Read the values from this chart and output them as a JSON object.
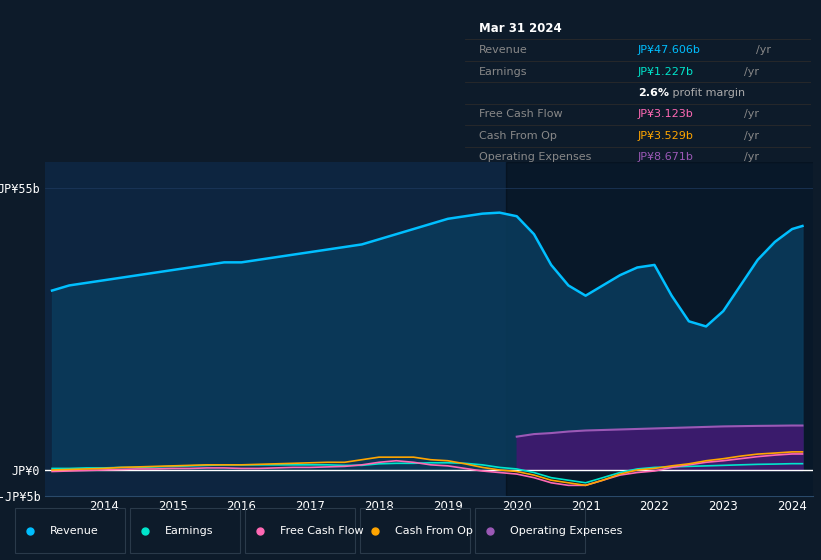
{
  "bg_color": "#0d1b2a",
  "plot_bg": "#0d2540",
  "grid_color": "#1e3a5f",
  "years": [
    2013.25,
    2013.5,
    2013.75,
    2014.0,
    2014.25,
    2014.5,
    2014.75,
    2015.0,
    2015.25,
    2015.5,
    2015.75,
    2016.0,
    2016.25,
    2016.5,
    2016.75,
    2017.0,
    2017.25,
    2017.5,
    2017.75,
    2018.0,
    2018.25,
    2018.5,
    2018.75,
    2019.0,
    2019.25,
    2019.5,
    2019.75,
    2020.0,
    2020.25,
    2020.5,
    2020.75,
    2021.0,
    2021.25,
    2021.5,
    2021.75,
    2022.0,
    2022.25,
    2022.5,
    2022.75,
    2023.0,
    2023.25,
    2023.5,
    2023.75,
    2024.0,
    2024.15
  ],
  "revenue": [
    35,
    36,
    36.5,
    37,
    37.5,
    38,
    38.5,
    39,
    39.5,
    40,
    40.5,
    40.5,
    41,
    41.5,
    42,
    42.5,
    43,
    43.5,
    44,
    45,
    46,
    47,
    48,
    49,
    49.5,
    50,
    50.2,
    49.5,
    46,
    40,
    36,
    34,
    36,
    38,
    39.5,
    40,
    34,
    29,
    28,
    31,
    36,
    41,
    44.5,
    47,
    47.6
  ],
  "earnings": [
    0.3,
    0.3,
    0.4,
    0.4,
    0.5,
    0.5,
    0.6,
    0.7,
    0.8,
    0.9,
    1.0,
    1.0,
    1.0,
    1.0,
    1.0,
    1.0,
    1.0,
    0.9,
    0.9,
    1.2,
    1.3,
    1.3,
    1.4,
    1.4,
    1.3,
    1.0,
    0.5,
    0.2,
    -0.5,
    -1.5,
    -2.0,
    -2.5,
    -1.5,
    -0.5,
    0.2,
    0.5,
    0.6,
    0.7,
    0.8,
    0.9,
    1.0,
    1.1,
    1.15,
    1.227,
    1.227
  ],
  "free_cash_flow": [
    -0.3,
    -0.2,
    -0.1,
    0.0,
    0.1,
    0.2,
    0.2,
    0.3,
    0.3,
    0.4,
    0.4,
    0.3,
    0.3,
    0.4,
    0.5,
    0.5,
    0.6,
    0.7,
    1.0,
    1.5,
    1.8,
    1.5,
    1.0,
    0.8,
    0.3,
    -0.2,
    -0.5,
    -0.8,
    -1.5,
    -2.5,
    -3.0,
    -3.0,
    -2.0,
    -1.0,
    -0.5,
    -0.2,
    0.5,
    1.0,
    1.5,
    1.8,
    2.2,
    2.6,
    2.9,
    3.123,
    3.123
  ],
  "cash_from_op": [
    0.0,
    0.1,
    0.2,
    0.3,
    0.5,
    0.6,
    0.7,
    0.8,
    0.9,
    1.0,
    1.0,
    1.0,
    1.1,
    1.2,
    1.3,
    1.4,
    1.5,
    1.5,
    2.0,
    2.5,
    2.5,
    2.5,
    2.0,
    1.8,
    1.2,
    0.5,
    0.0,
    -0.3,
    -1.0,
    -2.0,
    -2.5,
    -3.0,
    -2.0,
    -0.8,
    0.0,
    0.3,
    0.8,
    1.2,
    1.8,
    2.2,
    2.7,
    3.1,
    3.3,
    3.529,
    3.529
  ],
  "operating_expenses": [
    0,
    0,
    0,
    0,
    0,
    0,
    0,
    0,
    0,
    0,
    0,
    0,
    0,
    0,
    0,
    0,
    0,
    0,
    0,
    0,
    0,
    0,
    0,
    0,
    0,
    0,
    0,
    6.5,
    7.0,
    7.2,
    7.5,
    7.7,
    7.8,
    7.9,
    8.0,
    8.1,
    8.2,
    8.3,
    8.4,
    8.5,
    8.55,
    8.6,
    8.63,
    8.671,
    8.671
  ],
  "revenue_color": "#00bfff",
  "earnings_color": "#00e5cc",
  "free_cash_flow_color": "#ff69b4",
  "cash_from_op_color": "#ffa500",
  "operating_expenses_color": "#9b59b6",
  "revenue_fill_color": "#0a3a5a",
  "operating_expenses_fill_color": "#3d1a6e",
  "ylim": [
    -5,
    60
  ],
  "ytick_positions": [
    -5,
    0,
    55
  ],
  "ytick_labels": [
    "-JP¥5b",
    "JP¥0",
    "JP¥55b"
  ],
  "xticks": [
    2014,
    2015,
    2016,
    2017,
    2018,
    2019,
    2020,
    2021,
    2022,
    2023,
    2024
  ],
  "legend_labels": [
    "Revenue",
    "Earnings",
    "Free Cash Flow",
    "Cash From Op",
    "Operating Expenses"
  ],
  "legend_colors": [
    "#00bfff",
    "#00e5cc",
    "#ff69b4",
    "#ffa500",
    "#9b59b6"
  ],
  "shade_start_year": 2019.85,
  "table_rows": [
    {
      "label": "Mar 31 2024",
      "value": "",
      "suffix": "",
      "type": "title"
    },
    {
      "label": "Revenue",
      "value": "JP¥47.606b",
      "suffix": " /yr",
      "type": "revenue"
    },
    {
      "label": "Earnings",
      "value": "JP¥1.227b",
      "suffix": " /yr",
      "type": "earnings"
    },
    {
      "label": "",
      "value": "2.6%",
      "suffix": " profit margin",
      "type": "margin"
    },
    {
      "label": "Free Cash Flow",
      "value": "JP¥3.123b",
      "suffix": " /yr",
      "type": "fcf"
    },
    {
      "label": "Cash From Op",
      "value": "JP¥3.529b",
      "suffix": " /yr",
      "type": "cfo"
    },
    {
      "label": "Operating Expenses",
      "value": "JP¥8.671b",
      "suffix": " /yr",
      "type": "opex"
    }
  ],
  "value_colors": {
    "revenue": "#00bfff",
    "earnings": "#00e5cc",
    "fcf": "#ff69b4",
    "cfo": "#ffa500",
    "opex": "#9b59b6"
  }
}
